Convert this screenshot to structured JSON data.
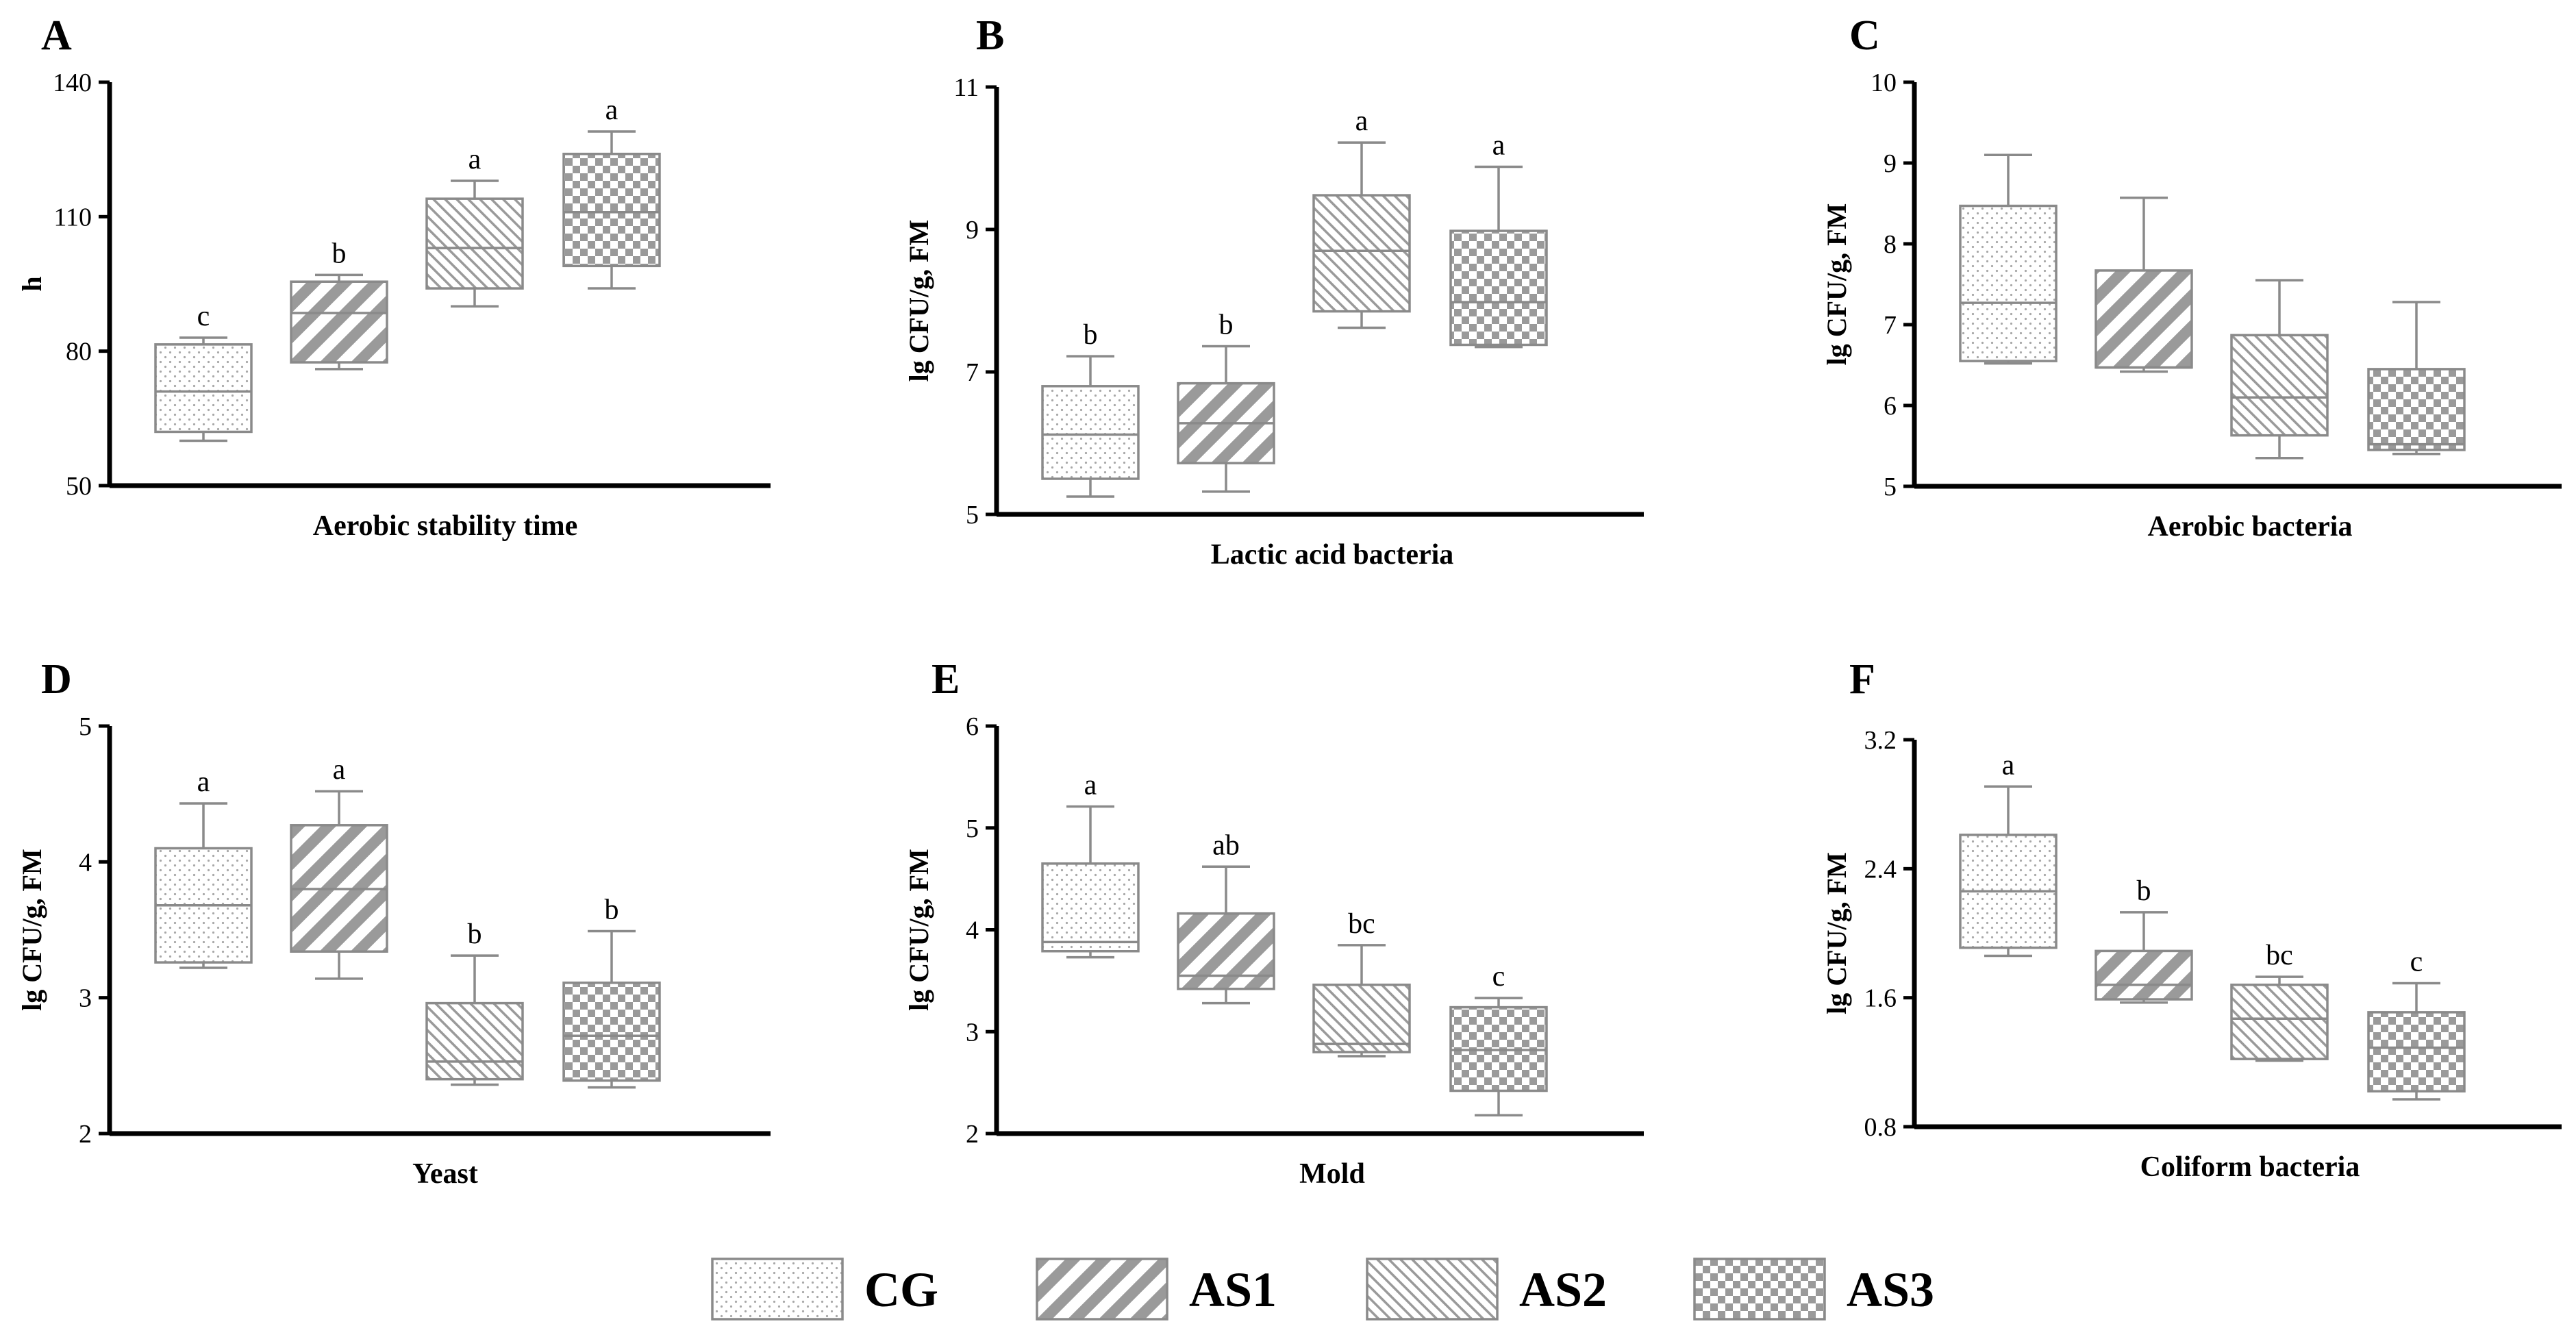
{
  "groups": [
    {
      "name": "CG",
      "pattern": "dots"
    },
    {
      "name": "AS1",
      "pattern": "wide-diag"
    },
    {
      "name": "AS2",
      "pattern": "narrow-diag"
    },
    {
      "name": "AS3",
      "pattern": "checker"
    }
  ],
  "colors": {
    "box_stroke": "#8a8a8a",
    "pattern_gray": "#9a9a9a",
    "axis": "#000000"
  },
  "chart_data": [
    {
      "type": "box",
      "panel": "A",
      "xlabel": "Aerobic stability time",
      "ylabel": "h",
      "ylim": [
        50,
        140
      ],
      "yticks": [
        "50",
        "80",
        "110",
        "140"
      ],
      "boxes": [
        {
          "group": "CG",
          "min": 60,
          "q1": 62,
          "median": 71,
          "q3": 81.5,
          "max": 83,
          "sig": "c"
        },
        {
          "group": "AS1",
          "min": 76,
          "q1": 77.5,
          "median": 88.5,
          "q3": 95.5,
          "max": 97,
          "sig": "b"
        },
        {
          "group": "AS2",
          "min": 90,
          "q1": 94,
          "median": 103,
          "q3": 114,
          "max": 118,
          "sig": "a"
        },
        {
          "group": "AS3",
          "min": 94,
          "q1": 99,
          "median": 111,
          "q3": 124,
          "max": 129,
          "sig": "a"
        }
      ]
    },
    {
      "type": "box",
      "panel": "B",
      "xlabel": "Lactic acid bacteria",
      "ylabel": "lg CFU/g, FM",
      "ylim": [
        5,
        11
      ],
      "yticks": [
        "5",
        "7",
        "9",
        "11"
      ],
      "boxes": [
        {
          "group": "CG",
          "min": 5.25,
          "q1": 5.5,
          "median": 6.12,
          "q3": 6.8,
          "max": 7.22,
          "sig": "b"
        },
        {
          "group": "AS1",
          "min": 5.32,
          "q1": 5.72,
          "median": 6.28,
          "q3": 6.84,
          "max": 7.36,
          "sig": "b"
        },
        {
          "group": "AS2",
          "min": 7.62,
          "q1": 7.85,
          "median": 8.7,
          "q3": 9.48,
          "max": 10.22,
          "sig": "a"
        },
        {
          "group": "AS3",
          "min": 7.35,
          "q1": 7.38,
          "median": 7.98,
          "q3": 8.98,
          "max": 9.88,
          "sig": "a"
        }
      ]
    },
    {
      "type": "box",
      "panel": "C",
      "xlabel": "Aerobic bacteria",
      "ylabel": "lg CFU/g, FM",
      "ylim": [
        5,
        10
      ],
      "yticks": [
        "5",
        "6",
        "7",
        "8",
        "9",
        "10"
      ],
      "boxes": [
        {
          "group": "CG",
          "min": 6.52,
          "q1": 6.55,
          "median": 7.27,
          "q3": 8.47,
          "max": 9.1,
          "sig": ""
        },
        {
          "group": "AS1",
          "min": 6.42,
          "q1": 6.47,
          "median": 6.47,
          "q3": 7.67,
          "max": 8.57,
          "sig": ""
        },
        {
          "group": "AS2",
          "min": 5.35,
          "q1": 5.63,
          "median": 6.1,
          "q3": 6.87,
          "max": 7.55,
          "sig": ""
        },
        {
          "group": "AS3",
          "min": 5.4,
          "q1": 5.45,
          "median": 5.52,
          "q3": 6.45,
          "max": 7.28,
          "sig": ""
        }
      ]
    },
    {
      "type": "box",
      "panel": "D",
      "xlabel": "Yeast",
      "ylabel": "lg CFU/g, FM",
      "ylim": [
        2,
        5
      ],
      "yticks": [
        "2",
        "3",
        "4",
        "5"
      ],
      "boxes": [
        {
          "group": "CG",
          "min": 3.22,
          "q1": 3.26,
          "median": 3.68,
          "q3": 4.1,
          "max": 4.43,
          "sig": "a"
        },
        {
          "group": "AS1",
          "min": 3.14,
          "q1": 3.34,
          "median": 3.8,
          "q3": 4.27,
          "max": 4.52,
          "sig": "a"
        },
        {
          "group": "AS2",
          "min": 2.36,
          "q1": 2.4,
          "median": 2.53,
          "q3": 2.96,
          "max": 3.31,
          "sig": "b"
        },
        {
          "group": "AS3",
          "min": 2.34,
          "q1": 2.39,
          "median": 2.72,
          "q3": 3.11,
          "max": 3.49,
          "sig": "b"
        }
      ]
    },
    {
      "type": "box",
      "panel": "E",
      "xlabel": "Mold",
      "ylabel": "lg CFU/g, FM",
      "ylim": [
        2,
        6
      ],
      "yticks": [
        "2",
        "3",
        "4",
        "5",
        "6"
      ],
      "boxes": [
        {
          "group": "CG",
          "min": 3.73,
          "q1": 3.79,
          "median": 3.88,
          "q3": 4.65,
          "max": 5.21,
          "sig": "a"
        },
        {
          "group": "AS1",
          "min": 3.28,
          "q1": 3.42,
          "median": 3.55,
          "q3": 4.16,
          "max": 4.62,
          "sig": "ab"
        },
        {
          "group": "AS2",
          "min": 2.76,
          "q1": 2.8,
          "median": 2.88,
          "q3": 3.46,
          "max": 3.85,
          "sig": "bc"
        },
        {
          "group": "AS3",
          "min": 2.18,
          "q1": 2.42,
          "median": 2.82,
          "q3": 3.24,
          "max": 3.33,
          "sig": "c"
        }
      ]
    },
    {
      "type": "box",
      "panel": "F",
      "xlabel": "Coliform bacteria",
      "ylabel": "lg CFU/g, FM",
      "ylim": [
        0.8,
        3.2
      ],
      "yticks": [
        "0.8",
        "1.6",
        "2.4",
        "3.2"
      ],
      "boxes": [
        {
          "group": "CG",
          "min": 1.86,
          "q1": 1.91,
          "median": 2.26,
          "q3": 2.61,
          "max": 2.91,
          "sig": "a"
        },
        {
          "group": "AS1",
          "min": 1.57,
          "q1": 1.59,
          "median": 1.68,
          "q3": 1.89,
          "max": 2.13,
          "sig": "b"
        },
        {
          "group": "AS2",
          "min": 1.21,
          "q1": 1.22,
          "median": 1.47,
          "q3": 1.68,
          "max": 1.73,
          "sig": "bc"
        },
        {
          "group": "AS3",
          "min": 0.97,
          "q1": 1.02,
          "median": 1.29,
          "q3": 1.51,
          "max": 1.69,
          "sig": "c"
        }
      ]
    }
  ]
}
